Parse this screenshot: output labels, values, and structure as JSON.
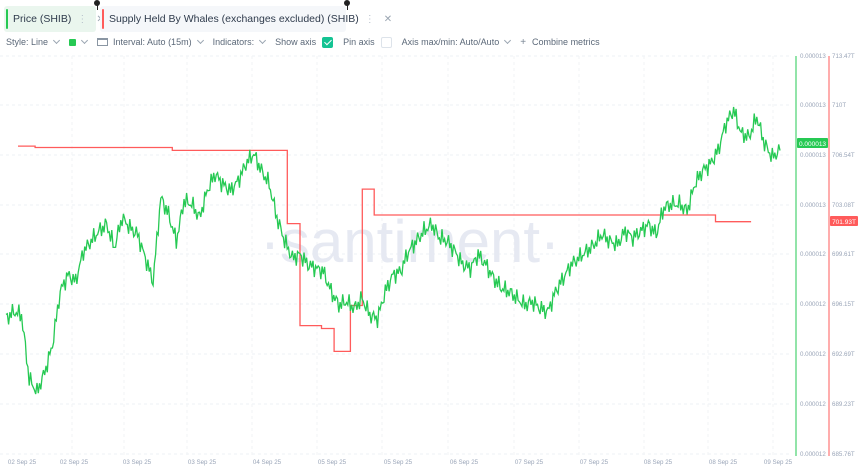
{
  "tabs": [
    {
      "label": "Price (SHIB)",
      "color": "#26c953"
    },
    {
      "label": "Supply Held By Whales (exchanges excluded) (SHIB)",
      "color": "#ff5b5b"
    }
  ],
  "toolbar": {
    "style_label": "Style: Line",
    "color_swatch": "#26c953",
    "interval_label": "Interval: Auto (15m)",
    "indicators_label": "Indicators:",
    "show_axis_label": "Show axis",
    "show_axis_checked": true,
    "pin_axis_label": "Pin axis",
    "pin_axis_checked": false,
    "axis_maxmin_label": "Axis max/min: Auto/Auto",
    "combine_label": "Combine metrics"
  },
  "watermark": "·santiment·",
  "chart_data": {
    "type": "line",
    "title": "",
    "xlabel": "",
    "x_ticks": [
      "02 Sep 25",
      "02 Sep 25",
      "03 Sep 25",
      "03 Sep 25",
      "04 Sep 25",
      "05 Sep 25",
      "05 Sep 25",
      "06 Sep 25",
      "07 Sep 25",
      "07 Sep 25",
      "08 Sep 25",
      "08 Sep 25",
      "09 Sep 25"
    ],
    "y_axis_price": {
      "label": "Price (SHIB)",
      "ticks": [
        "0.000013",
        "0.000013",
        "0.000013",
        "0.000013",
        "0.000012",
        "0.000012",
        "0.000012",
        "0.000012",
        "0.000012"
      ],
      "current_value": "0.000013",
      "color": "#26c953"
    },
    "y_axis_whales": {
      "label": "Supply Held By Whales (exchanges excluded) (SHIB)",
      "ticks": [
        "713.47T",
        "710T",
        "706.54T",
        "703.08T",
        "699.61T",
        "696.15T",
        "692.69T",
        "689.23T",
        "685.76T"
      ],
      "current_value": "701.93T",
      "color": "#ff5b5b",
      "ylim": [
        685.76,
        713.47
      ]
    },
    "series": [
      {
        "name": "Price (SHIB)",
        "color": "#26c953",
        "note": "y values in pixel-relative units (0=bottom, 100=top of plot area)",
        "points": [
          [
            0,
            32
          ],
          [
            1,
            34
          ],
          [
            2,
            33
          ],
          [
            3,
            14
          ],
          [
            4,
            10
          ],
          [
            5,
            16
          ],
          [
            6,
            24
          ],
          [
            7,
            40
          ],
          [
            8,
            45
          ],
          [
            9,
            43
          ],
          [
            10,
            52
          ],
          [
            11,
            55
          ],
          [
            12,
            58
          ],
          [
            13,
            60
          ],
          [
            14,
            53
          ],
          [
            15,
            62
          ],
          [
            16,
            59
          ],
          [
            17,
            57
          ],
          [
            18,
            50
          ],
          [
            19,
            43
          ],
          [
            20,
            68
          ],
          [
            21,
            63
          ],
          [
            22,
            55
          ],
          [
            23,
            67
          ],
          [
            24,
            66
          ],
          [
            25,
            62
          ],
          [
            26,
            70
          ],
          [
            27,
            75
          ],
          [
            28,
            72
          ],
          [
            29,
            70
          ],
          [
            30,
            73
          ],
          [
            31,
            78
          ],
          [
            32,
            81
          ],
          [
            33,
            76
          ],
          [
            34,
            72
          ],
          [
            35,
            62
          ],
          [
            36,
            55
          ],
          [
            37,
            50
          ],
          [
            38,
            51
          ],
          [
            39,
            48
          ],
          [
            40,
            47
          ],
          [
            41,
            46
          ],
          [
            42,
            40
          ],
          [
            43,
            36
          ],
          [
            44,
            37
          ],
          [
            45,
            35
          ],
          [
            46,
            38
          ],
          [
            47,
            33
          ],
          [
            48,
            32
          ],
          [
            49,
            40
          ],
          [
            50,
            45
          ],
          [
            51,
            46
          ],
          [
            52,
            52
          ],
          [
            53,
            55
          ],
          [
            54,
            58
          ],
          [
            55,
            60
          ],
          [
            56,
            56
          ],
          [
            57,
            55
          ],
          [
            58,
            52
          ],
          [
            59,
            48
          ],
          [
            60,
            47
          ],
          [
            61,
            51
          ],
          [
            62,
            48
          ],
          [
            63,
            44
          ],
          [
            64,
            41
          ],
          [
            65,
            40
          ],
          [
            66,
            38
          ],
          [
            67,
            36
          ],
          [
            68,
            37
          ],
          [
            69,
            35
          ],
          [
            70,
            34
          ],
          [
            71,
            40
          ],
          [
            72,
            44
          ],
          [
            73,
            48
          ],
          [
            74,
            50
          ],
          [
            75,
            52
          ],
          [
            76,
            54
          ],
          [
            77,
            57
          ],
          [
            78,
            55
          ],
          [
            79,
            54
          ],
          [
            80,
            58
          ],
          [
            81,
            56
          ],
          [
            82,
            58
          ],
          [
            83,
            60
          ],
          [
            84,
            57
          ],
          [
            85,
            65
          ],
          [
            86,
            66
          ],
          [
            87,
            66
          ],
          [
            88,
            64
          ],
          [
            89,
            72
          ],
          [
            90,
            76
          ],
          [
            91,
            78
          ],
          [
            92,
            82
          ],
          [
            93,
            90
          ],
          [
            94,
            94
          ],
          [
            95,
            87
          ],
          [
            96,
            86
          ],
          [
            97,
            92
          ],
          [
            98,
            84
          ],
          [
            99,
            80
          ],
          [
            100,
            82
          ]
        ]
      },
      {
        "name": "Supply Held By Whales (exchanges excluded)",
        "color": "#ff5b5b",
        "steps": [
          {
            "x_from": 0,
            "x_to": 2.3,
            "value": 707.2
          },
          {
            "x_from": 2.3,
            "x_to": 20.8,
            "value": 707.1
          },
          {
            "x_from": 20.8,
            "x_to": 36.3,
            "value": 706.9
          },
          {
            "x_from": 36.3,
            "x_to": 38.0,
            "value": 701.8
          },
          {
            "x_from": 38.0,
            "x_to": 40.9,
            "value": 694.7
          },
          {
            "x_from": 40.9,
            "x_to": 42.6,
            "value": 694.5
          },
          {
            "x_from": 42.6,
            "x_to": 44.8,
            "value": 692.9
          },
          {
            "x_from": 44.8,
            "x_to": 46.4,
            "value": 696.1
          },
          {
            "x_from": 46.4,
            "x_to": 48.0,
            "value": 704.2
          },
          {
            "x_from": 48.0,
            "x_to": 94.0,
            "value": 702.4
          },
          {
            "x_from": 94.0,
            "x_to": 98.8,
            "value": 701.93
          }
        ]
      }
    ],
    "grid": true,
    "legend_position": "top"
  }
}
